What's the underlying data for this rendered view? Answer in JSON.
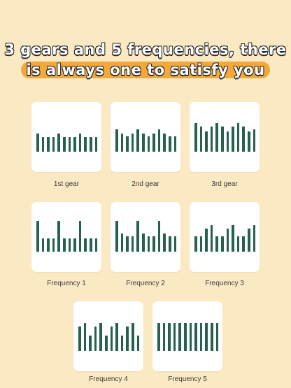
{
  "headline": {
    "line1": "3 gears and 5 frequencies, there",
    "line2": "is always one to satisfy you",
    "pill_color": "#f4a83a"
  },
  "colors": {
    "background": "#fbe9c3",
    "card": "#ffffff",
    "bar": "#25614b"
  },
  "items": [
    {
      "label": "1st gear",
      "levels": [
        0.52,
        0.43,
        0.43,
        0.43,
        0.52,
        0.43,
        0.43,
        0.43,
        0.52,
        0.43,
        0.43,
        0.43
      ]
    },
    {
      "label": "2nd gear",
      "levels": [
        0.64,
        0.52,
        0.45,
        0.52,
        0.64,
        0.52,
        0.45,
        0.52,
        0.64,
        0.52,
        0.45,
        0.45
      ]
    },
    {
      "label": "3rd gear",
      "levels": [
        0.83,
        0.72,
        0.58,
        0.72,
        0.83,
        0.72,
        0.58,
        0.72,
        0.83,
        0.72,
        0.58,
        0.64
      ]
    },
    {
      "label": "Frequency 1",
      "levels": [
        0.88,
        0.38,
        0.38,
        0.38,
        0.88,
        0.38,
        0.38,
        0.38,
        0.88,
        0.38,
        0.38,
        0.38
      ]
    },
    {
      "label": "Frequency 2",
      "levels": [
        0.88,
        0.52,
        0.45,
        0.45,
        0.88,
        0.52,
        0.45,
        0.45,
        0.88,
        0.52,
        0.45,
        0.45
      ]
    },
    {
      "label": "Frequency 3",
      "levels": [
        0.45,
        0.45,
        0.66,
        0.76,
        0.45,
        0.45,
        0.66,
        0.76,
        0.45,
        0.45,
        0.66,
        0.76
      ]
    },
    {
      "label": "Frequency 4",
      "levels": [
        0.7,
        0.8,
        0.45,
        0.7,
        0.8,
        0.45,
        0.7,
        0.8,
        0.45,
        0.7,
        0.8,
        0.45
      ]
    },
    {
      "label": "Frequency 5",
      "levels": [
        0.8,
        0.8,
        0.8,
        0.8,
        0.8,
        0.8,
        0.8,
        0.8,
        0.8,
        0.8,
        0.8,
        0.8
      ]
    }
  ]
}
